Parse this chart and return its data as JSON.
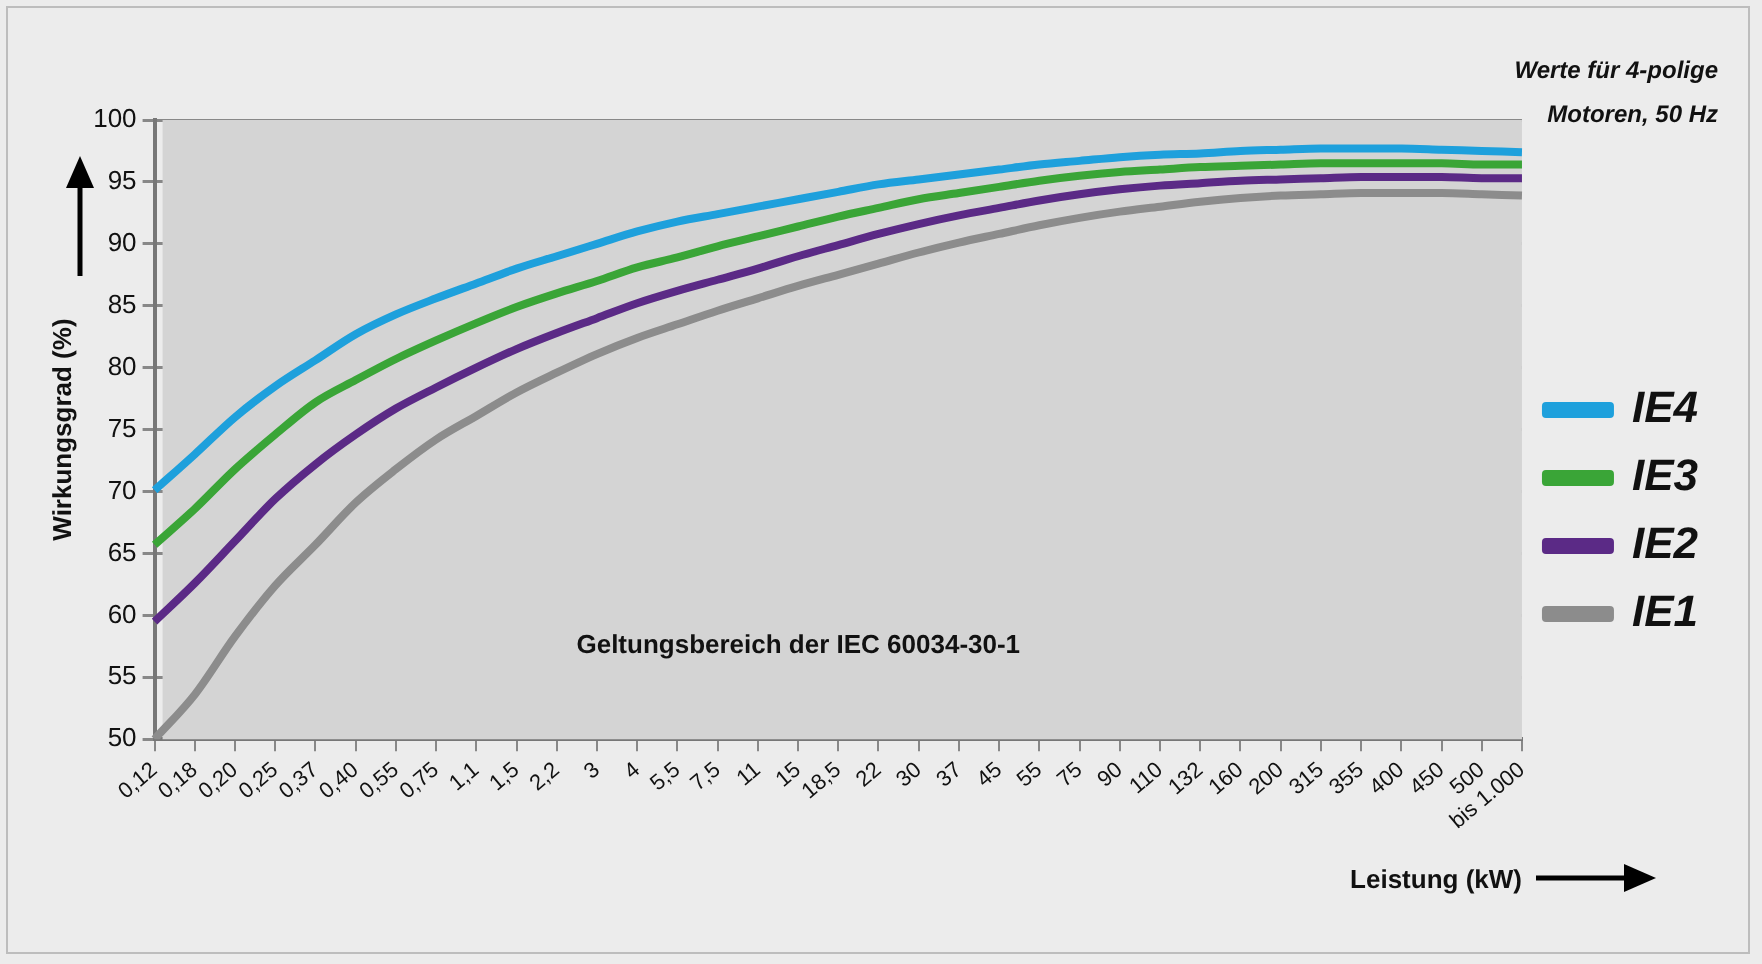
{
  "chart_data": {
    "type": "line",
    "xlabel": "Leistung (kW)",
    "ylabel": "Wirkungsgrad (%)",
    "categories": [
      "0,12",
      "0,18",
      "0,20",
      "0,25",
      "0,37",
      "0,40",
      "0,55",
      "0,75",
      "1,1",
      "1,5",
      "2,2",
      "3",
      "4",
      "5,5",
      "7,5",
      "11",
      "15",
      "18,5",
      "22",
      "30",
      "37",
      "45",
      "55",
      "75",
      "90",
      "110",
      "132",
      "160",
      "200",
      "315",
      "355",
      "400",
      "450",
      "500",
      "bis 1.000"
    ],
    "series": [
      {
        "name": "IE4",
        "color": "#1ea0dc",
        "values": [
          70.1,
          73.0,
          76.0,
          78.5,
          80.6,
          82.7,
          84.3,
          85.6,
          86.8,
          88.0,
          89.0,
          90.0,
          91.0,
          91.8,
          92.4,
          93.0,
          93.6,
          94.2,
          94.8,
          95.2,
          95.6,
          96.0,
          96.4,
          96.7,
          97.0,
          97.2,
          97.3,
          97.5,
          97.6,
          97.7,
          97.7,
          97.7,
          97.6,
          97.5,
          97.4
        ]
      },
      {
        "name": "IE3",
        "color": "#3aa537",
        "values": [
          65.7,
          68.6,
          71.8,
          74.6,
          77.2,
          79.0,
          80.7,
          82.2,
          83.6,
          84.9,
          86.0,
          87.0,
          88.1,
          88.9,
          89.8,
          90.6,
          91.4,
          92.2,
          92.9,
          93.6,
          94.1,
          94.6,
          95.1,
          95.5,
          95.8,
          96.0,
          96.2,
          96.3,
          96.4,
          96.5,
          96.5,
          96.5,
          96.5,
          96.4,
          96.4
        ]
      },
      {
        "name": "IE2",
        "color": "#5b2a86",
        "values": [
          59.5,
          62.6,
          66.0,
          69.4,
          72.2,
          74.6,
          76.7,
          78.4,
          80.0,
          81.5,
          82.8,
          84.0,
          85.2,
          86.2,
          87.1,
          88.0,
          89.0,
          89.9,
          90.8,
          91.6,
          92.3,
          92.9,
          93.5,
          94.0,
          94.4,
          94.7,
          94.9,
          95.1,
          95.2,
          95.3,
          95.4,
          95.4,
          95.4,
          95.3,
          95.3
        ]
      },
      {
        "name": "IE1",
        "color": "#8c8c8c",
        "values": [
          50.0,
          53.6,
          58.3,
          62.4,
          65.7,
          69.1,
          71.8,
          74.2,
          76.1,
          78.0,
          79.6,
          81.1,
          82.4,
          83.5,
          84.6,
          85.6,
          86.6,
          87.5,
          88.4,
          89.3,
          90.1,
          90.8,
          91.5,
          92.1,
          92.6,
          93.0,
          93.4,
          93.7,
          93.9,
          94.0,
          94.1,
          94.1,
          94.1,
          94.0,
          93.9
        ]
      }
    ],
    "ylim": [
      50,
      100
    ],
    "yticks": [
      50,
      55,
      60,
      65,
      70,
      75,
      80,
      85,
      90,
      95,
      100
    ],
    "bands": [
      {
        "axis": "x",
        "from": "0,12",
        "to": "bis 1.000",
        "label": "Geltungsbereich der IEC 60034-30-1",
        "color": "#d4d4d4"
      }
    ],
    "annotations": [
      "Werte für 4-polige Motoren, 50 Hz"
    ],
    "grid": "y",
    "legend": "right",
    "marker": "none",
    "line_style": "solid"
  }
}
